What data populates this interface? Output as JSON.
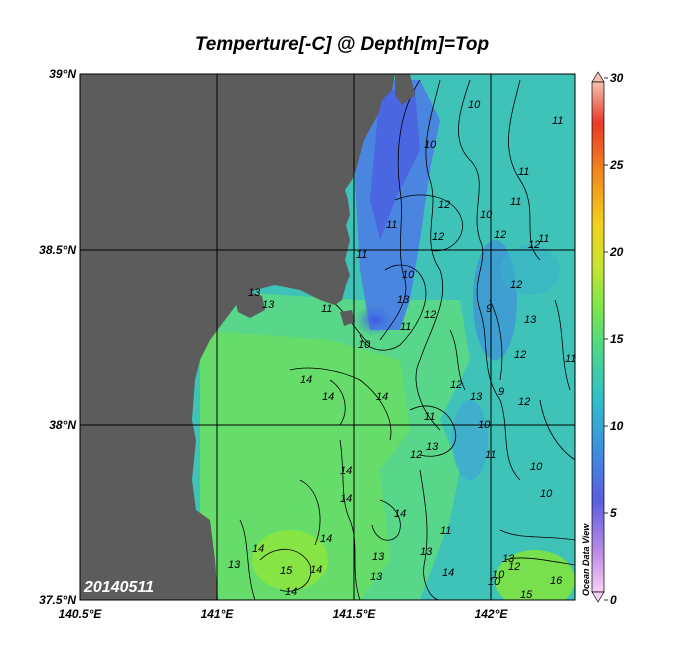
{
  "title": "Temperture[-C] @ Depth[m]=Top",
  "date_label": "20140511",
  "watermark": "Ocean Data View",
  "lat_ticks": [
    "39°N",
    "38.5°N",
    "38°N",
    "37.5°N"
  ],
  "lon_ticks": [
    "140.5°E",
    "141°E",
    "141.5°E",
    "142°E"
  ],
  "colorbar": {
    "min": 0,
    "max": 30,
    "ticks": [
      "30",
      "25",
      "20",
      "15",
      "10",
      "5",
      "0"
    ],
    "colors": [
      "#f8d0f5",
      "#b98ae6",
      "#5a5ee0",
      "#3d8fe0",
      "#30c0c8",
      "#4fd888",
      "#7ee64a",
      "#c8e432",
      "#f2d21e",
      "#f28a1e",
      "#e83a28",
      "#f6c0b0"
    ]
  },
  "colors": {
    "land": "#5c5c5c",
    "grid": "#000000",
    "sea_cold": "#3d6fe0",
    "sea_mid": "#3cc4b0",
    "sea_warm": "#6ee050"
  },
  "contour_labels": [
    "10",
    "10",
    "11",
    "11",
    "12",
    "12",
    "10",
    "11",
    "11",
    "12",
    "12",
    "11",
    "10",
    "12",
    "13",
    "12",
    "11",
    "11",
    "9",
    "13",
    "12",
    "11",
    "13",
    "13",
    "10",
    "14",
    "14",
    "14",
    "11",
    "12",
    "13",
    "12",
    "9",
    "10",
    "11",
    "10",
    "10",
    "14",
    "14",
    "14",
    "14",
    "13",
    "13",
    "13",
    "11",
    "12",
    "14",
    "14",
    "15",
    "14",
    "13",
    "14",
    "13",
    "13",
    "10",
    "12",
    "15",
    "16",
    "11",
    "10"
  ]
}
